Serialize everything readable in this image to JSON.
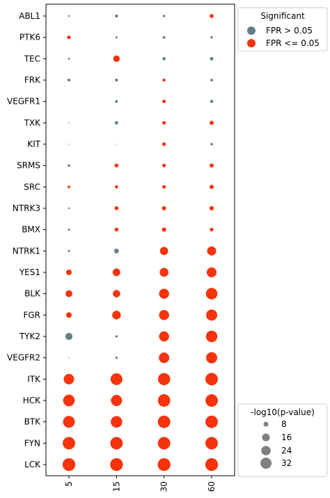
{
  "chart_data": {
    "type": "scatter",
    "x_categories": [
      "5",
      "15",
      "30",
      "60"
    ],
    "y_categories": [
      "ABL1",
      "PTK6",
      "TEC",
      "FRK",
      "VEGFR1",
      "TXK",
      "KIT",
      "SRMS",
      "SRC",
      "NTRK3",
      "BMX",
      "NTRK1",
      "YES1",
      "BLK",
      "FGR",
      "TYK2",
      "VEGFR2",
      "ITK",
      "HCK",
      "BTK",
      "FYN",
      "LCK"
    ],
    "size_variable": "-log10(p-value)",
    "color_variable": "Significant",
    "colors": {
      "fpr_gt": "#657d8a",
      "fpr_le": "#f5330d"
    },
    "points": [
      {
        "y": "ABL1",
        "x": "5",
        "size": 0.4,
        "sig": "fpr_gt"
      },
      {
        "y": "ABL1",
        "x": "15",
        "size": 1.2,
        "sig": "fpr_gt"
      },
      {
        "y": "ABL1",
        "x": "30",
        "size": 0.8,
        "sig": "fpr_gt"
      },
      {
        "y": "ABL1",
        "x": "60",
        "size": 2.0,
        "sig": "fpr_le"
      },
      {
        "y": "PTK6",
        "x": "5",
        "size": 1.8,
        "sig": "fpr_le"
      },
      {
        "y": "PTK6",
        "x": "15",
        "size": 0.6,
        "sig": "fpr_gt"
      },
      {
        "y": "PTK6",
        "x": "30",
        "size": 0.9,
        "sig": "fpr_gt"
      },
      {
        "y": "PTK6",
        "x": "60",
        "size": 0.7,
        "sig": "fpr_gt"
      },
      {
        "y": "TEC",
        "x": "5",
        "size": 0.5,
        "sig": "fpr_gt"
      },
      {
        "y": "TEC",
        "x": "15",
        "size": 5.5,
        "sig": "fpr_le"
      },
      {
        "y": "TEC",
        "x": "30",
        "size": 1.4,
        "sig": "fpr_gt"
      },
      {
        "y": "TEC",
        "x": "60",
        "size": 1.6,
        "sig": "fpr_gt"
      },
      {
        "y": "FRK",
        "x": "5",
        "size": 1.0,
        "sig": "fpr_gt"
      },
      {
        "y": "FRK",
        "x": "15",
        "size": 1.1,
        "sig": "fpr_gt"
      },
      {
        "y": "FRK",
        "x": "30",
        "size": 1.2,
        "sig": "fpr_le"
      },
      {
        "y": "FRK",
        "x": "60",
        "size": 0.9,
        "sig": "fpr_gt"
      },
      {
        "y": "VEGFR1",
        "x": "15",
        "size": 1.0,
        "sig": "fpr_gt"
      },
      {
        "y": "VEGFR1",
        "x": "30",
        "size": 1.5,
        "sig": "fpr_le"
      },
      {
        "y": "VEGFR1",
        "x": "60",
        "size": 1.3,
        "sig": "fpr_gt"
      },
      {
        "y": "TXK",
        "x": "5",
        "size": 0.15,
        "sig": "fpr_gt"
      },
      {
        "y": "TXK",
        "x": "15",
        "size": 1.5,
        "sig": "fpr_gt"
      },
      {
        "y": "TXK",
        "x": "30",
        "size": 1.6,
        "sig": "fpr_le"
      },
      {
        "y": "TXK",
        "x": "60",
        "size": 2.3,
        "sig": "fpr_le"
      },
      {
        "y": "KIT",
        "x": "5",
        "size": 0.15,
        "sig": "fpr_gt"
      },
      {
        "y": "KIT",
        "x": "15",
        "size": 0.1,
        "sig": "fpr_gt"
      },
      {
        "y": "KIT",
        "x": "30",
        "size": 1.8,
        "sig": "fpr_le"
      },
      {
        "y": "KIT",
        "x": "60",
        "size": 0.8,
        "sig": "fpr_gt"
      },
      {
        "y": "SRMS",
        "x": "5",
        "size": 0.8,
        "sig": "fpr_gt"
      },
      {
        "y": "SRMS",
        "x": "15",
        "size": 2.0,
        "sig": "fpr_le"
      },
      {
        "y": "SRMS",
        "x": "30",
        "size": 1.7,
        "sig": "fpr_le"
      },
      {
        "y": "SRMS",
        "x": "60",
        "size": 2.2,
        "sig": "fpr_le"
      },
      {
        "y": "SRC",
        "x": "5",
        "size": 0.9,
        "sig": "fpr_le"
      },
      {
        "y": "SRC",
        "x": "15",
        "size": 1.3,
        "sig": "fpr_le"
      },
      {
        "y": "SRC",
        "x": "30",
        "size": 1.6,
        "sig": "fpr_le"
      },
      {
        "y": "SRC",
        "x": "60",
        "size": 2.3,
        "sig": "fpr_le"
      },
      {
        "y": "NTRK3",
        "x": "5",
        "size": 0.4,
        "sig": "fpr_gt"
      },
      {
        "y": "NTRK3",
        "x": "15",
        "size": 2.0,
        "sig": "fpr_le"
      },
      {
        "y": "NTRK3",
        "x": "30",
        "size": 2.3,
        "sig": "fpr_le"
      },
      {
        "y": "NTRK3",
        "x": "60",
        "size": 2.5,
        "sig": "fpr_le"
      },
      {
        "y": "BMX",
        "x": "5",
        "size": 0.6,
        "sig": "fpr_gt"
      },
      {
        "y": "BMX",
        "x": "15",
        "size": 2.0,
        "sig": "fpr_le"
      },
      {
        "y": "BMX",
        "x": "30",
        "size": 2.4,
        "sig": "fpr_le"
      },
      {
        "y": "BMX",
        "x": "60",
        "size": 1.8,
        "sig": "fpr_le"
      },
      {
        "y": "NTRK1",
        "x": "5",
        "size": 0.6,
        "sig": "fpr_gt"
      },
      {
        "y": "NTRK1",
        "x": "15",
        "size": 2.8,
        "sig": "fpr_gt"
      },
      {
        "y": "NTRK1",
        "x": "30",
        "size": 8.5,
        "sig": "fpr_le"
      },
      {
        "y": "NTRK1",
        "x": "60",
        "size": 10.5,
        "sig": "fpr_le"
      },
      {
        "y": "YES1",
        "x": "5",
        "size": 4.0,
        "sig": "fpr_le"
      },
      {
        "y": "YES1",
        "x": "15",
        "size": 7.5,
        "sig": "fpr_le"
      },
      {
        "y": "YES1",
        "x": "30",
        "size": 10.0,
        "sig": "fpr_le"
      },
      {
        "y": "YES1",
        "x": "60",
        "size": 12.5,
        "sig": "fpr_le"
      },
      {
        "y": "BLK",
        "x": "5",
        "size": 6.0,
        "sig": "fpr_le"
      },
      {
        "y": "BLK",
        "x": "15",
        "size": 7.0,
        "sig": "fpr_le"
      },
      {
        "y": "BLK",
        "x": "30",
        "size": 13.0,
        "sig": "fpr_le"
      },
      {
        "y": "BLK",
        "x": "60",
        "size": 17.0,
        "sig": "fpr_le"
      },
      {
        "y": "FGR",
        "x": "5",
        "size": 4.0,
        "sig": "fpr_le"
      },
      {
        "y": "FGR",
        "x": "15",
        "size": 9.5,
        "sig": "fpr_le"
      },
      {
        "y": "FGR",
        "x": "30",
        "size": 13.0,
        "sig": "fpr_le"
      },
      {
        "y": "FGR",
        "x": "60",
        "size": 16.0,
        "sig": "fpr_le"
      },
      {
        "y": "TYK2",
        "x": "5",
        "size": 6.5,
        "sig": "fpr_gt"
      },
      {
        "y": "TYK2",
        "x": "15",
        "size": 0.7,
        "sig": "fpr_gt"
      },
      {
        "y": "TYK2",
        "x": "30",
        "size": 13.0,
        "sig": "fpr_le"
      },
      {
        "y": "TYK2",
        "x": "60",
        "size": 17.0,
        "sig": "fpr_le"
      },
      {
        "y": "VEGFR2",
        "x": "5",
        "size": 0.1,
        "sig": "fpr_le"
      },
      {
        "y": "VEGFR2",
        "x": "15",
        "size": 0.7,
        "sig": "fpr_gt"
      },
      {
        "y": "VEGFR2",
        "x": "30",
        "size": 14.0,
        "sig": "fpr_le"
      },
      {
        "y": "VEGFR2",
        "x": "60",
        "size": 16.0,
        "sig": "fpr_le"
      },
      {
        "y": "ITK",
        "x": "5",
        "size": 14.0,
        "sig": "fpr_le"
      },
      {
        "y": "ITK",
        "x": "15",
        "size": 18.0,
        "sig": "fpr_le"
      },
      {
        "y": "ITK",
        "x": "30",
        "size": 19.0,
        "sig": "fpr_le"
      },
      {
        "y": "ITK",
        "x": "60",
        "size": 20.0,
        "sig": "fpr_le"
      },
      {
        "y": "HCK",
        "x": "5",
        "size": 17.5,
        "sig": "fpr_le"
      },
      {
        "y": "HCK",
        "x": "15",
        "size": 16.0,
        "sig": "fpr_le"
      },
      {
        "y": "HCK",
        "x": "30",
        "size": 20.0,
        "sig": "fpr_le"
      },
      {
        "y": "HCK",
        "x": "60",
        "size": 20.0,
        "sig": "fpr_le"
      },
      {
        "y": "BTK",
        "x": "5",
        "size": 18.0,
        "sig": "fpr_le"
      },
      {
        "y": "BTK",
        "x": "15",
        "size": 17.0,
        "sig": "fpr_le"
      },
      {
        "y": "BTK",
        "x": "30",
        "size": 20.0,
        "sig": "fpr_le"
      },
      {
        "y": "BTK",
        "x": "60",
        "size": 20.0,
        "sig": "fpr_le"
      },
      {
        "y": "FYN",
        "x": "5",
        "size": 20.0,
        "sig": "fpr_le"
      },
      {
        "y": "FYN",
        "x": "15",
        "size": 20.0,
        "sig": "fpr_le"
      },
      {
        "y": "FYN",
        "x": "30",
        "size": 20.0,
        "sig": "fpr_le"
      },
      {
        "y": "FYN",
        "x": "60",
        "size": 20.0,
        "sig": "fpr_le"
      },
      {
        "y": "LCK",
        "x": "5",
        "size": 21.0,
        "sig": "fpr_le"
      },
      {
        "y": "LCK",
        "x": "15",
        "size": 21.0,
        "sig": "fpr_le"
      },
      {
        "y": "LCK",
        "x": "30",
        "size": 21.0,
        "sig": "fpr_le"
      },
      {
        "y": "LCK",
        "x": "60",
        "size": 21.0,
        "sig": "fpr_le"
      }
    ],
    "legend_color": {
      "title": "Significant",
      "items": [
        {
          "key": "fpr_gt",
          "label": "FPR > 0.05"
        },
        {
          "key": "fpr_le",
          "label": "FPR <= 0.05"
        }
      ]
    },
    "legend_size": {
      "title": "-log10(p-value)",
      "items": [
        {
          "value": 8,
          "label": "8"
        },
        {
          "value": 16,
          "label": "16"
        },
        {
          "value": 24,
          "label": "24"
        },
        {
          "value": 32,
          "label": "32"
        }
      ]
    }
  }
}
